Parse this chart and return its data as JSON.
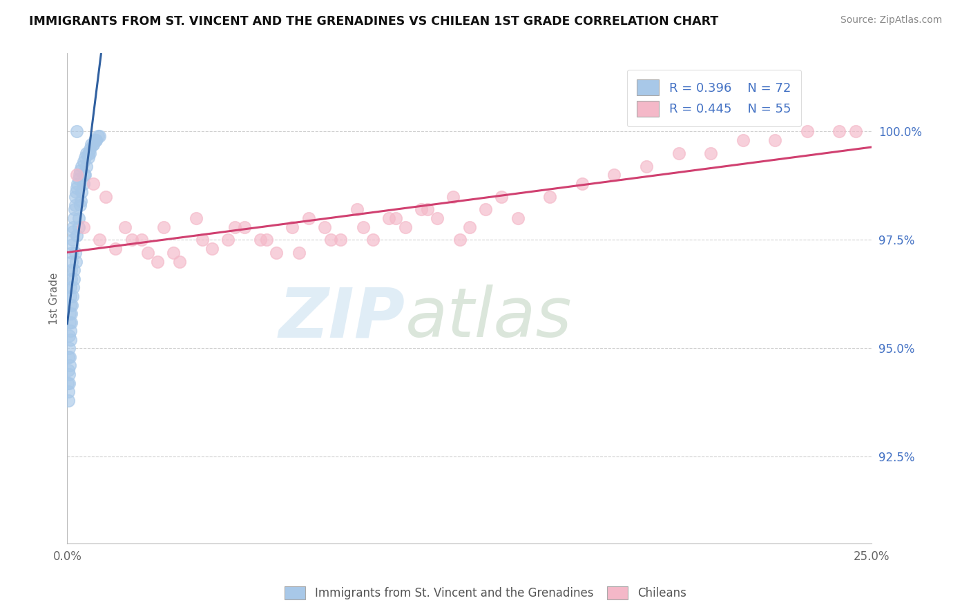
{
  "title": "IMMIGRANTS FROM ST. VINCENT AND THE GRENADINES VS CHILEAN 1ST GRADE CORRELATION CHART",
  "source": "Source: ZipAtlas.com",
  "ylabel": "1st Grade",
  "y_ticks": [
    92.5,
    95.0,
    97.5,
    100.0
  ],
  "y_tick_labels": [
    "92.5%",
    "95.0%",
    "97.5%",
    "100.0%"
  ],
  "xmin": 0.0,
  "xmax": 25.0,
  "ymin": 90.5,
  "ymax": 101.8,
  "blue_R": 0.396,
  "blue_N": 72,
  "pink_R": 0.445,
  "pink_N": 55,
  "blue_color": "#a8c8e8",
  "pink_color": "#f4b8c8",
  "blue_line_color": "#3060a0",
  "pink_line_color": "#d04070",
  "legend_label_blue": "Immigrants from St. Vincent and the Grenadines",
  "legend_label_pink": "Chileans",
  "blue_scatter_x": [
    0.02,
    0.03,
    0.04,
    0.05,
    0.06,
    0.07,
    0.08,
    0.09,
    0.1,
    0.11,
    0.12,
    0.13,
    0.14,
    0.15,
    0.16,
    0.17,
    0.18,
    0.19,
    0.2,
    0.22,
    0.24,
    0.26,
    0.28,
    0.3,
    0.32,
    0.35,
    0.38,
    0.4,
    0.45,
    0.5,
    0.55,
    0.6,
    0.65,
    0.7,
    0.75,
    0.8,
    0.85,
    0.9,
    0.95,
    1.0,
    0.03,
    0.05,
    0.07,
    0.1,
    0.12,
    0.15,
    0.18,
    0.2,
    0.25,
    0.3,
    0.35,
    0.4,
    0.45,
    0.5,
    0.55,
    0.6,
    0.65,
    0.7,
    0.8,
    0.9,
    0.04,
    0.06,
    0.08,
    0.11,
    0.13,
    0.16,
    0.21,
    0.28,
    0.36,
    0.42,
    0.52,
    0.3
  ],
  "blue_scatter_y": [
    94.2,
    94.5,
    94.8,
    95.0,
    95.3,
    95.6,
    95.8,
    96.0,
    96.2,
    96.4,
    96.6,
    96.8,
    97.0,
    97.2,
    97.4,
    97.5,
    97.7,
    97.8,
    98.0,
    98.2,
    98.3,
    98.5,
    98.6,
    98.7,
    98.8,
    98.9,
    99.0,
    99.1,
    99.2,
    99.3,
    99.4,
    99.5,
    99.5,
    99.6,
    99.7,
    99.7,
    99.8,
    99.8,
    99.9,
    99.9,
    93.8,
    94.2,
    94.6,
    95.2,
    95.6,
    96.0,
    96.4,
    96.8,
    97.2,
    97.6,
    98.0,
    98.3,
    98.6,
    98.8,
    99.0,
    99.2,
    99.4,
    99.5,
    99.7,
    99.8,
    94.0,
    94.4,
    94.8,
    95.4,
    95.8,
    96.2,
    96.6,
    97.0,
    97.8,
    98.4,
    99.0,
    100.0
  ],
  "pink_scatter_x": [
    0.5,
    1.0,
    1.5,
    2.0,
    2.5,
    3.0,
    3.5,
    4.0,
    4.5,
    5.0,
    5.5,
    6.0,
    6.5,
    7.0,
    7.5,
    8.0,
    8.5,
    9.0,
    9.5,
    10.0,
    10.5,
    11.0,
    11.5,
    12.0,
    12.5,
    13.0,
    13.5,
    14.0,
    15.0,
    16.0,
    17.0,
    18.0,
    19.0,
    20.0,
    21.0,
    22.0,
    23.0,
    24.0,
    24.5,
    0.3,
    0.8,
    1.2,
    1.8,
    2.3,
    2.8,
    3.3,
    4.2,
    5.2,
    6.2,
    7.2,
    8.2,
    9.2,
    10.2,
    11.2,
    12.2
  ],
  "pink_scatter_y": [
    97.8,
    97.5,
    97.3,
    97.5,
    97.2,
    97.8,
    97.0,
    98.0,
    97.3,
    97.5,
    97.8,
    97.5,
    97.2,
    97.8,
    98.0,
    97.8,
    97.5,
    98.2,
    97.5,
    98.0,
    97.8,
    98.2,
    98.0,
    98.5,
    97.8,
    98.2,
    98.5,
    98.0,
    98.5,
    98.8,
    99.0,
    99.2,
    99.5,
    99.5,
    99.8,
    99.8,
    100.0,
    100.0,
    100.0,
    99.0,
    98.8,
    98.5,
    97.8,
    97.5,
    97.0,
    97.2,
    97.5,
    97.8,
    97.5,
    97.2,
    97.5,
    97.8,
    98.0,
    98.2,
    97.5
  ],
  "watermark_zip": "ZIP",
  "watermark_atlas": "atlas",
  "background_color": "#ffffff",
  "grid_color": "#d0d0d0"
}
